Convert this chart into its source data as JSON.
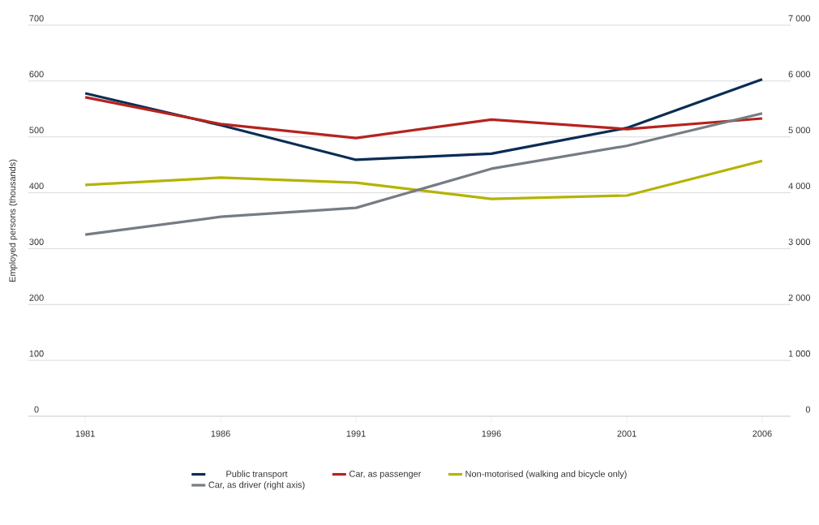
{
  "chart_data": {
    "type": "line",
    "ylabel": "Employed persons (thousands)",
    "categories": [
      "1981",
      "1986",
      "1991",
      "1996",
      "2001",
      "2006"
    ],
    "series": [
      {
        "name": "Public transport",
        "color": "#0b2d55",
        "values": [
          578,
          521,
          459,
          470,
          516,
          603
        ]
      },
      {
        "name": "Car, as passenger",
        "color": "#b5231f",
        "values": [
          571,
          523,
          498,
          531,
          514,
          533
        ]
      },
      {
        "name": "Non-motorised (walking and bicycle only)",
        "color": "#b5b300",
        "values": [
          414,
          427,
          418,
          389,
          395,
          457
        ]
      },
      {
        "name": "Car, as driver (right axis)",
        "color": "#767c84",
        "axis": "y2",
        "values": [
          3250,
          3570,
          3730,
          4430,
          4840,
          5420
        ]
      }
    ],
    "ylim": [
      0,
      700
    ],
    "yticks": [
      0,
      100,
      200,
      300,
      400,
      500,
      600,
      700
    ],
    "y2lim": [
      0,
      7000
    ],
    "y2ticks": [
      {
        "value": 0,
        "label": "0"
      },
      {
        "value": 1000,
        "label": "1 000"
      },
      {
        "value": 2000,
        "label": "2 000"
      },
      {
        "value": 3000,
        "label": "3 000"
      },
      {
        "value": 4000,
        "label": "4 000"
      },
      {
        "value": 5000,
        "label": "5 000"
      },
      {
        "value": 6000,
        "label": "6 000"
      },
      {
        "value": 7000,
        "label": "7 000"
      }
    ],
    "grid": "y",
    "legend": "bottom",
    "marker": "none",
    "line_style": "solid"
  }
}
